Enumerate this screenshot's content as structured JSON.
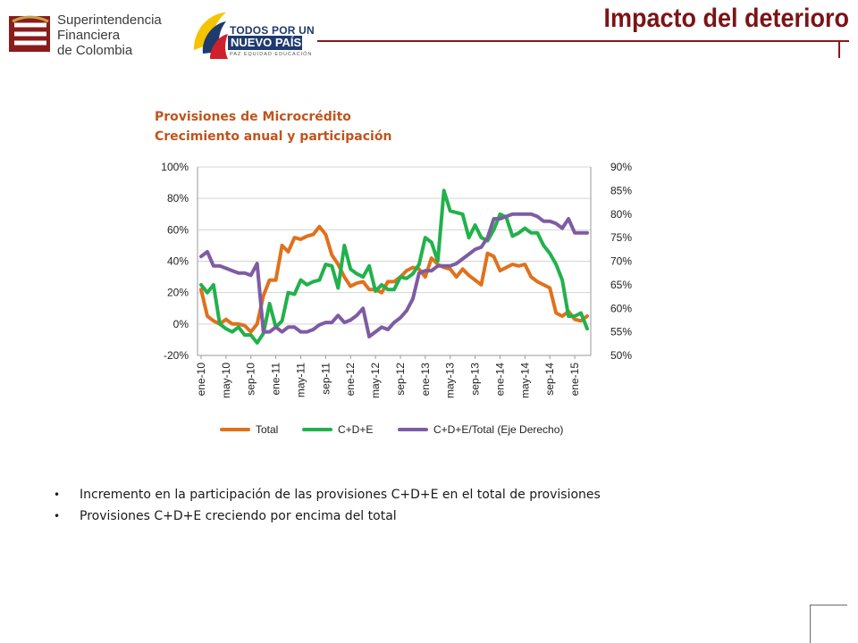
{
  "header": {
    "org_name_lines": [
      "Superintendencia",
      "Financiera",
      "de Colombia"
    ],
    "gov_logo_line1": "TODOS POR UN",
    "gov_logo_line2": "NUEVO PAÍS",
    "gov_logo_line3": "PAZ  EQUIDAD  EDUCACIÓN",
    "page_title": "Impacto del deterioro"
  },
  "chart_title": {
    "line1": "Provisiones de Microcrédito",
    "line2": "Crecimiento anual y participación"
  },
  "colors": {
    "title": "#7b1416",
    "chart_title": "#c0541c",
    "total": "#e0711c",
    "cde": "#22b14c",
    "ratio": "#7e5ca2"
  },
  "chart_data": {
    "type": "line",
    "x": [
      "ene-10",
      "feb-10",
      "mar-10",
      "abr-10",
      "may-10",
      "jun-10",
      "jul-10",
      "ago-10",
      "sep-10",
      "oct-10",
      "nov-10",
      "dic-10",
      "ene-11",
      "feb-11",
      "mar-11",
      "abr-11",
      "may-11",
      "jun-11",
      "jul-11",
      "ago-11",
      "sep-11",
      "oct-11",
      "nov-11",
      "dic-11",
      "ene-12",
      "feb-12",
      "mar-12",
      "abr-12",
      "may-12",
      "jun-12",
      "jul-12",
      "ago-12",
      "sep-12",
      "oct-12",
      "nov-12",
      "dic-12",
      "ene-13",
      "feb-13",
      "mar-13",
      "abr-13",
      "may-13",
      "jun-13",
      "jul-13",
      "ago-13",
      "sep-13",
      "oct-13",
      "nov-13",
      "dic-13",
      "ene-14",
      "feb-14",
      "mar-14",
      "abr-14",
      "may-14",
      "jun-14",
      "jul-14",
      "ago-14",
      "sep-14",
      "oct-14",
      "nov-14",
      "dic-14",
      "ene-15",
      "feb-15",
      "mar-15"
    ],
    "x_tick_labels": [
      "ene-10",
      "may-10",
      "sep-10",
      "ene-11",
      "may-11",
      "sep-11",
      "ene-12",
      "may-12",
      "sep-12",
      "ene-13",
      "may-13",
      "sep-13",
      "ene-14",
      "may-14",
      "sep-14",
      "ene-15"
    ],
    "y_left": {
      "ylim": [
        -20,
        100
      ],
      "ticks": [
        "-20%",
        "0%",
        "20%",
        "40%",
        "60%",
        "80%",
        "100%"
      ]
    },
    "y_right": {
      "ylim": [
        50,
        90
      ],
      "ticks": [
        "50%",
        "55%",
        "60%",
        "65%",
        "70%",
        "75%",
        "80%",
        "85%",
        "90%"
      ]
    },
    "grid": true,
    "legend_position": "bottom",
    "series": [
      {
        "name": "Total",
        "axis": "left",
        "values": [
          22,
          5,
          2,
          0,
          3,
          0,
          0,
          -1,
          -5,
          0,
          18,
          28,
          28,
          50,
          46,
          55,
          54,
          56,
          57,
          62,
          57,
          44,
          38,
          30,
          24,
          26,
          27,
          22,
          22,
          20,
          27,
          27,
          30,
          34,
          36,
          35,
          30,
          42,
          38,
          36,
          35,
          30,
          35,
          31,
          28,
          25,
          45,
          43,
          34,
          36,
          38,
          37,
          38,
          30,
          27,
          25,
          23,
          7,
          5,
          8,
          3,
          2,
          5
        ]
      },
      {
        "name": "C+D+E",
        "axis": "left",
        "values": [
          25,
          20,
          25,
          0,
          -3,
          -5,
          -2,
          -7,
          -7,
          -12,
          -6,
          13,
          -2,
          2,
          20,
          19,
          28,
          25,
          27,
          28,
          38,
          37,
          23,
          50,
          35,
          32,
          30,
          37,
          21,
          25,
          22,
          22,
          30,
          29,
          32,
          38,
          55,
          52,
          40,
          85,
          72,
          71,
          70,
          55,
          63,
          55,
          53,
          60,
          70,
          68,
          56,
          58,
          61,
          58,
          58,
          50,
          45,
          38,
          28,
          5,
          5,
          7,
          -3
        ]
      },
      {
        "name": "C+D+E/Total (Eje Derecho)",
        "axis": "right",
        "values": [
          71,
          72,
          69,
          69,
          68.5,
          68,
          67.5,
          67.5,
          67,
          69.5,
          55,
          55,
          56,
          55,
          56,
          56,
          55,
          55,
          55.5,
          56.5,
          57,
          57,
          58.5,
          57,
          57.5,
          58.5,
          60,
          54,
          55,
          56,
          55.5,
          57,
          58,
          59.5,
          62,
          67.5,
          68,
          68,
          69,
          69,
          69,
          69.5,
          70.5,
          71.5,
          72.5,
          73,
          75,
          79,
          79,
          79.5,
          80,
          80,
          80,
          80,
          79.5,
          78.5,
          78.5,
          78,
          77,
          79,
          76,
          76,
          76
        ]
      }
    ]
  },
  "bullets": [
    "Incremento en la participación de las provisiones C+D+E en el total de provisiones",
    "Provisiones C+D+E creciendo por encima del total"
  ]
}
